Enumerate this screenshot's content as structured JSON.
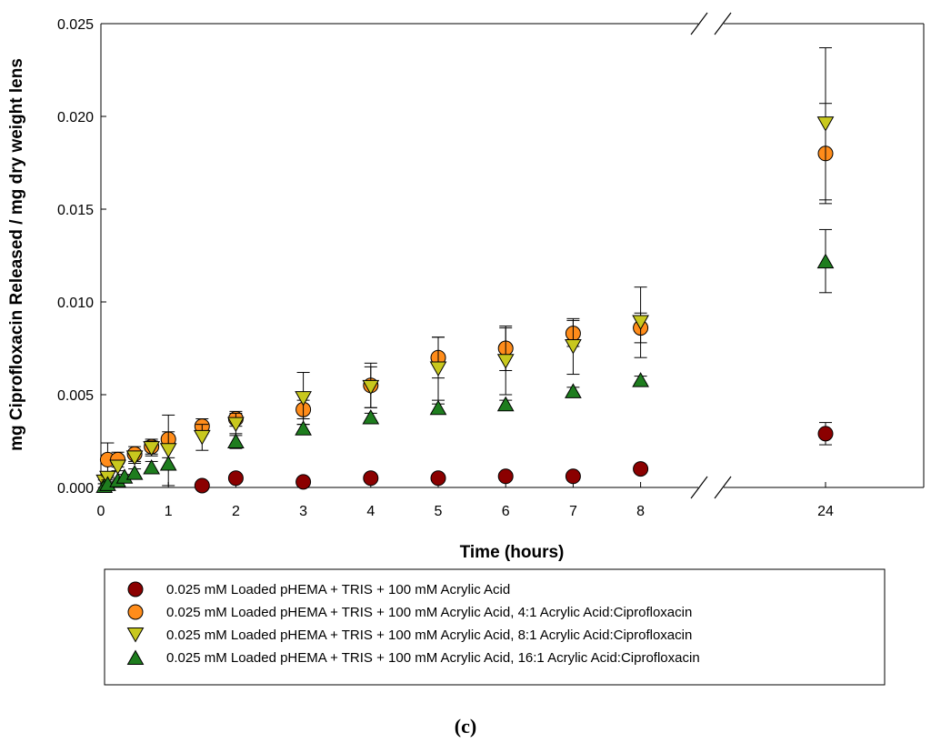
{
  "chart_data": {
    "type": "scatter",
    "title": "",
    "xlabel": "Time (hours)",
    "ylabel": "mg Ciprofloxacin Released / mg dry weight lens",
    "ylim": [
      0,
      0.025
    ],
    "xlim_segment1": [
      0,
      9
    ],
    "x_break_after": 9,
    "xlim_segment2": [
      24,
      24
    ],
    "x_ticks": [
      0,
      1,
      2,
      3,
      4,
      5,
      6,
      7,
      8,
      24
    ],
    "x_tick_labels": [
      "0",
      "1",
      "2",
      "3",
      "4",
      "5",
      "6",
      "7",
      "8",
      "24"
    ],
    "y_ticks": [
      0,
      0.005,
      0.01,
      0.015,
      0.02,
      0.025
    ],
    "y_tick_labels": [
      "0.000",
      "0.005",
      "0.010",
      "0.015",
      "0.020",
      "0.025"
    ],
    "grid": false,
    "legend_position": "bottom",
    "caption": "(c)",
    "series": [
      {
        "name": "0.025 mM Loaded pHEMA + TRIS + 100 mM Acrylic Acid",
        "marker": "circle",
        "color": "#8b0000",
        "points": [
          {
            "x": 1.5,
            "y": 0.0001,
            "err": 0.0
          },
          {
            "x": 2,
            "y": 0.0005,
            "err": 0.0
          },
          {
            "x": 3,
            "y": 0.0003,
            "err": 0.0
          },
          {
            "x": 4,
            "y": 0.0005,
            "err": 0.0
          },
          {
            "x": 5,
            "y": 0.0005,
            "err": 0.0
          },
          {
            "x": 6,
            "y": 0.0006,
            "err": 0.0
          },
          {
            "x": 7,
            "y": 0.0006,
            "err": 0.0
          },
          {
            "x": 8,
            "y": 0.001,
            "err": 0.0
          },
          {
            "x": 24,
            "y": 0.0029,
            "err": 0.0006
          }
        ]
      },
      {
        "name": "0.025 mM Loaded pHEMA + TRIS + 100 mM Acrylic Acid, 4:1 Acrylic Acid:Ciprofloxacin",
        "marker": "circle",
        "color": "#ff8c1a",
        "points": [
          {
            "x": 0.1,
            "y": 0.0015,
            "err": 0.0009
          },
          {
            "x": 0.25,
            "y": 0.0015,
            "err": 0.0004
          },
          {
            "x": 0.5,
            "y": 0.0018,
            "err": 0.0004
          },
          {
            "x": 0.75,
            "y": 0.0022,
            "err": 0.0004
          },
          {
            "x": 1,
            "y": 0.0026,
            "err": 0.0004
          },
          {
            "x": 1.5,
            "y": 0.0033,
            "err": 0.0004
          },
          {
            "x": 2,
            "y": 0.0037,
            "err": 0.0004
          },
          {
            "x": 3,
            "y": 0.0042,
            "err": 0.0005
          },
          {
            "x": 4,
            "y": 0.0055,
            "err": 0.0012
          },
          {
            "x": 5,
            "y": 0.007,
            "err": 0.0011
          },
          {
            "x": 6,
            "y": 0.0075,
            "err": 0.0012
          },
          {
            "x": 7,
            "y": 0.0083,
            "err": 0.0007
          },
          {
            "x": 8,
            "y": 0.0086,
            "err": 0.0008
          },
          {
            "x": 24,
            "y": 0.018,
            "err": 0.0027
          }
        ]
      },
      {
        "name": "0.025 mM Loaded pHEMA + TRIS + 100 mM Acrylic Acid, 8:1 Acrylic Acid:Ciprofloxacin",
        "marker": "triangle-down",
        "color": "#c8c81e",
        "points": [
          {
            "x": 0.05,
            "y": 0.0003,
            "err": 0.0001
          },
          {
            "x": 0.1,
            "y": 0.0005,
            "err": 0.0001
          },
          {
            "x": 0.25,
            "y": 0.0011,
            "err": 0.0002
          },
          {
            "x": 0.5,
            "y": 0.0016,
            "err": 0.0003
          },
          {
            "x": 0.75,
            "y": 0.0021,
            "err": 0.0004
          },
          {
            "x": 1,
            "y": 0.002,
            "err": 0.0019
          },
          {
            "x": 1.5,
            "y": 0.0027,
            "err": 0.0007
          },
          {
            "x": 2,
            "y": 0.0034,
            "err": 0.0006
          },
          {
            "x": 3,
            "y": 0.0048,
            "err": 0.0014
          },
          {
            "x": 4,
            "y": 0.0054,
            "err": 0.0011
          },
          {
            "x": 5,
            "y": 0.0064,
            "err": 0.0017
          },
          {
            "x": 6,
            "y": 0.0068,
            "err": 0.0018
          },
          {
            "x": 7,
            "y": 0.0076,
            "err": 0.0015
          },
          {
            "x": 8,
            "y": 0.0089,
            "err": 0.0019
          },
          {
            "x": 24,
            "y": 0.0196,
            "err": 0.0041
          }
        ]
      },
      {
        "name": "0.025 mM Loaded pHEMA + TRIS + 100 mM Acrylic Acid, 16:1 Acrylic Acid:Ciprofloxacin",
        "marker": "triangle-up",
        "color": "#1e7d1e",
        "points": [
          {
            "x": 0.05,
            "y": 0.0001,
            "err": 0.0001
          },
          {
            "x": 0.1,
            "y": 0.0002,
            "err": 0.0001
          },
          {
            "x": 0.25,
            "y": 0.0004,
            "err": 0.0001
          },
          {
            "x": 0.35,
            "y": 0.0006,
            "err": 0.0001
          },
          {
            "x": 0.5,
            "y": 0.0008,
            "err": 0.0002
          },
          {
            "x": 0.75,
            "y": 0.0011,
            "err": 0.0003
          },
          {
            "x": 1,
            "y": 0.0013,
            "err": 0.0003
          },
          {
            "x": 2,
            "y": 0.0025,
            "err": 0.0004
          },
          {
            "x": 3,
            "y": 0.0032,
            "err": 0.0002
          },
          {
            "x": 4,
            "y": 0.0038,
            "err": 0.0002
          },
          {
            "x": 5,
            "y": 0.0043,
            "err": 0.0002
          },
          {
            "x": 6,
            "y": 0.0045,
            "err": 0.0002
          },
          {
            "x": 7,
            "y": 0.0052,
            "err": 0.0002
          },
          {
            "x": 8,
            "y": 0.0058,
            "err": 0.0002
          },
          {
            "x": 24,
            "y": 0.0122,
            "err": 0.0017
          }
        ]
      }
    ]
  }
}
